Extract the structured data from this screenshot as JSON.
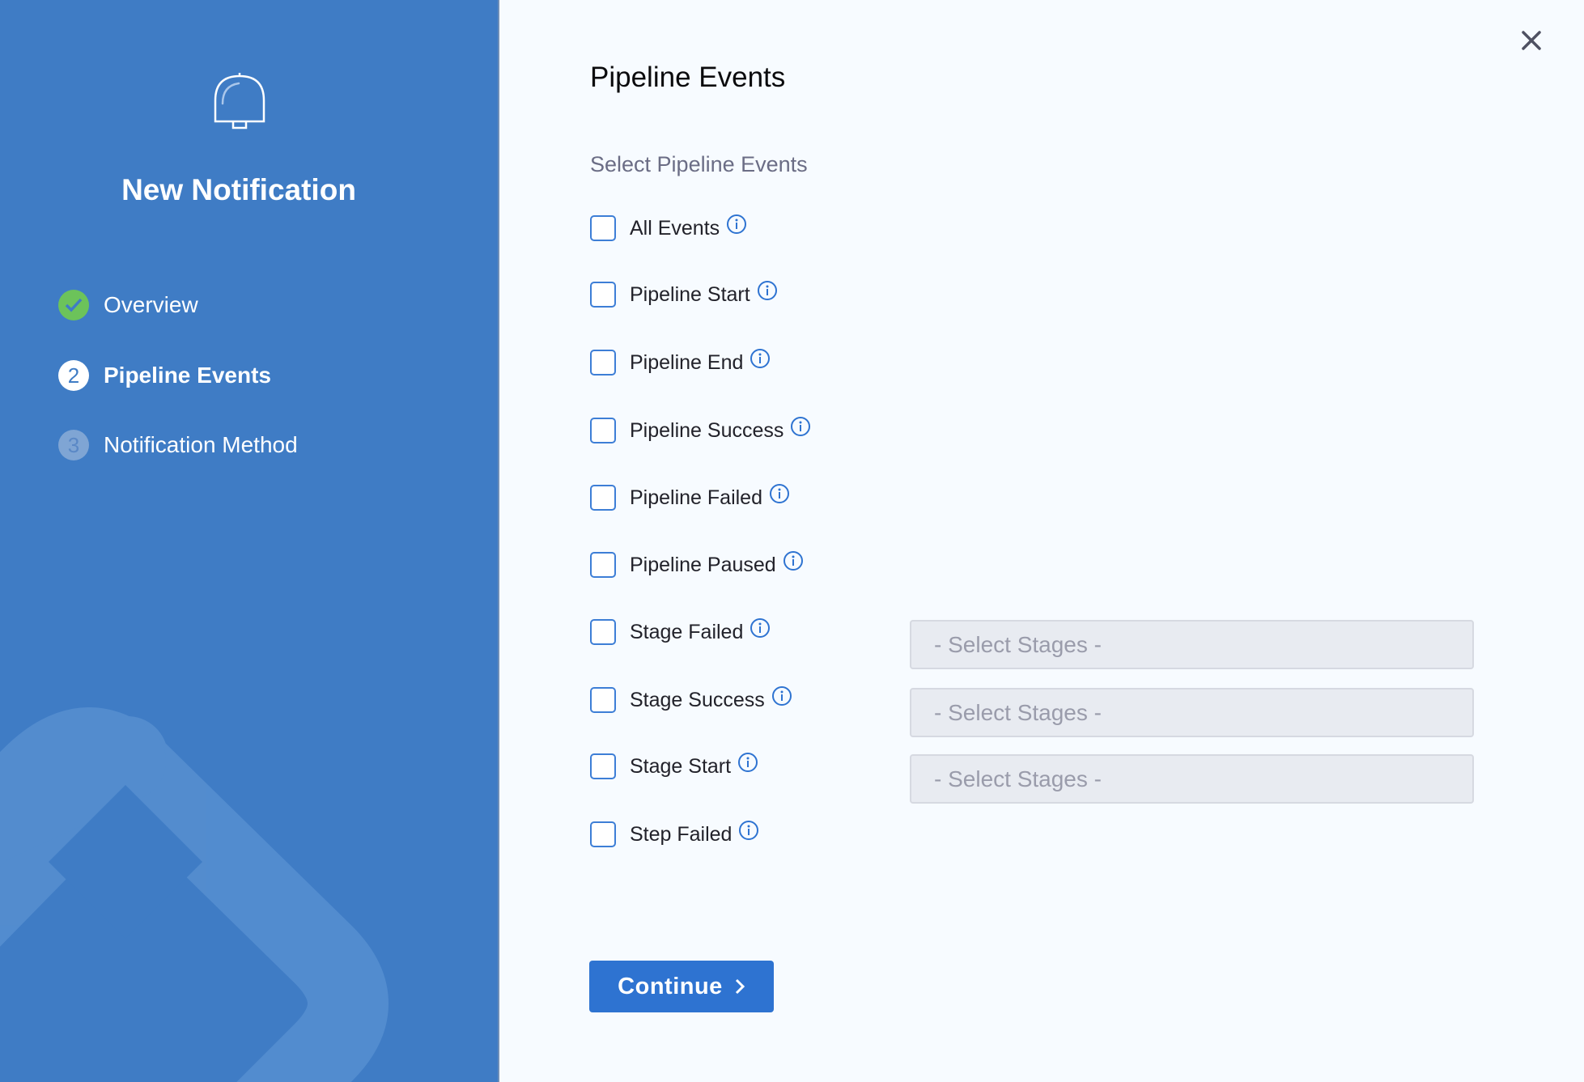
{
  "sidebar": {
    "title": "New Notification",
    "steps": [
      {
        "number": "1",
        "label": "Overview",
        "state": "completed"
      },
      {
        "number": "2",
        "label": "Pipeline Events",
        "state": "active"
      },
      {
        "number": "3",
        "label": "Notification Method",
        "state": "pending"
      }
    ]
  },
  "main": {
    "title": "Pipeline Events",
    "subtitle": "Select Pipeline Events",
    "events": [
      {
        "label": "All Events",
        "checked": false
      },
      {
        "label": "Pipeline Start",
        "checked": false
      },
      {
        "label": "Pipeline End",
        "checked": false
      },
      {
        "label": "Pipeline Success",
        "checked": false
      },
      {
        "label": "Pipeline Failed",
        "checked": false
      },
      {
        "label": "Pipeline Paused",
        "checked": false
      },
      {
        "label": "Stage Failed",
        "checked": false,
        "stage_select": "- Select Stages -"
      },
      {
        "label": "Stage Success",
        "checked": false,
        "stage_select": "- Select Stages -"
      },
      {
        "label": "Stage Start",
        "checked": false,
        "stage_select": "- Select Stages -"
      },
      {
        "label": "Step Failed",
        "checked": false
      }
    ],
    "continue_label": "Continue"
  },
  "colors": {
    "sidebar": "#3f7cc5",
    "accent": "#2e73d1",
    "success": "#6cc35a"
  }
}
